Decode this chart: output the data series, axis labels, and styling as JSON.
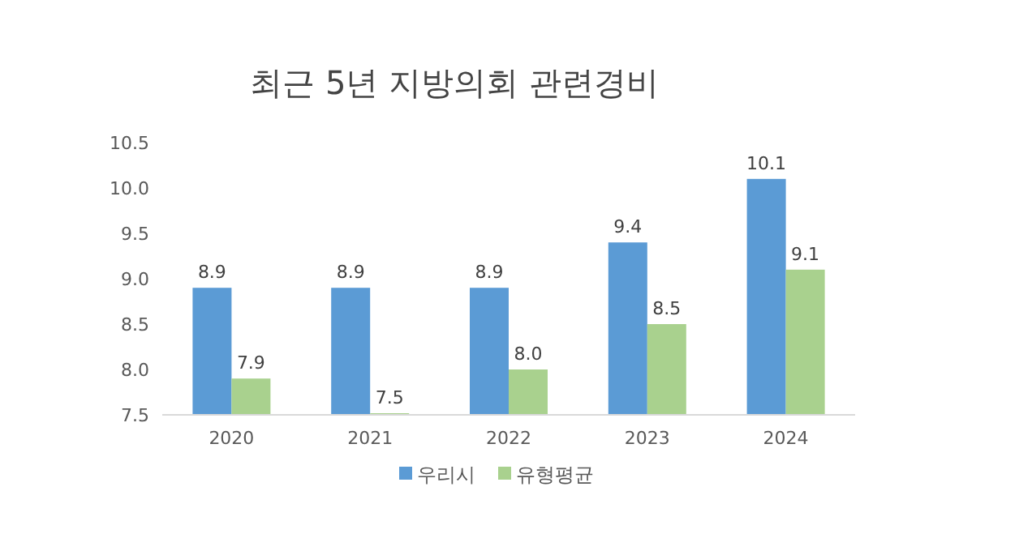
{
  "chart_data": {
    "type": "bar",
    "title": "최근 5년 지방의회 관련경비",
    "categories": [
      "2020",
      "2021",
      "2022",
      "2023",
      "2024"
    ],
    "series": [
      {
        "name": "우리시",
        "color": "#5b9bd5",
        "values": [
          8.9,
          8.9,
          8.9,
          9.4,
          10.1
        ],
        "value_labels": [
          "8.9",
          "8.9",
          "8.9",
          "9.4",
          "10.1"
        ]
      },
      {
        "name": "유형평균",
        "color": "#a9d18e",
        "values": [
          7.9,
          7.5,
          8.0,
          8.5,
          9.1
        ],
        "value_labels": [
          "7.9",
          "7.5",
          "8.0",
          "8.5",
          "9.1"
        ]
      }
    ],
    "ylim": [
      7.5,
      10.5
    ],
    "yticks": [
      7.5,
      {
        "value": 8,
        "label": "8.0"
      },
      8.5,
      {
        "value": 9,
        "label": "9.0"
      },
      9.5,
      {
        "value": 10,
        "label": "10.0"
      },
      10.5
    ],
    "grid": false,
    "legend": "bottom"
  }
}
